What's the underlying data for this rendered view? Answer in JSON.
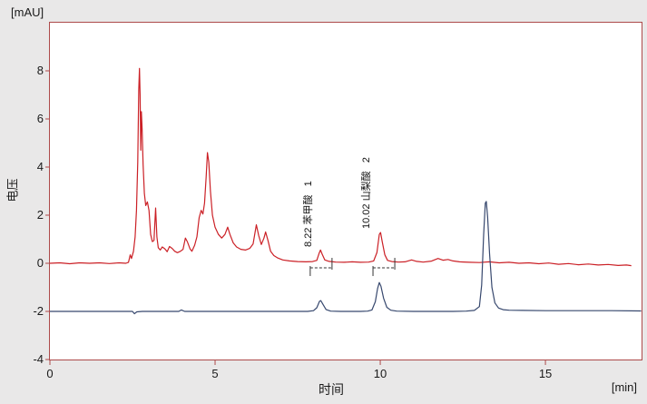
{
  "chart_data": {
    "type": "line",
    "title": "",
    "y_unit": "[mAU]",
    "x_unit": "[min]",
    "ylabel": "电压",
    "xlabel": "时间",
    "xlim": [
      0,
      17.91
    ],
    "ylim": [
      -4,
      10
    ],
    "x_ticks": [
      0,
      5,
      10,
      15
    ],
    "y_ticks": [
      8,
      6,
      4,
      2,
      0,
      -2,
      -4
    ],
    "frame_color": "#ad4a4a",
    "plot_bg": "#ffffff",
    "background": "#e9e8e8",
    "integration_mark_color": "#333333",
    "series": [
      {
        "name": "red-signal-trace",
        "color": "#cb2026",
        "points": [
          [
            0,
            0
          ],
          [
            0.3,
            0.02
          ],
          [
            0.6,
            -0.02
          ],
          [
            0.9,
            0.02
          ],
          [
            1.2,
            0
          ],
          [
            1.5,
            0.02
          ],
          [
            1.8,
            -0.01
          ],
          [
            2.1,
            0.02
          ],
          [
            2.3,
            0
          ],
          [
            2.38,
            0.04
          ],
          [
            2.43,
            0.35
          ],
          [
            2.47,
            0.2
          ],
          [
            2.53,
            0.5
          ],
          [
            2.58,
            1.1
          ],
          [
            2.62,
            2.2
          ],
          [
            2.66,
            4.2
          ],
          [
            2.69,
            7.2
          ],
          [
            2.71,
            8.1
          ],
          [
            2.73,
            7.0
          ],
          [
            2.75,
            4.7
          ],
          [
            2.77,
            6.3
          ],
          [
            2.79,
            5.6
          ],
          [
            2.82,
            4.1
          ],
          [
            2.86,
            2.9
          ],
          [
            2.9,
            2.4
          ],
          [
            2.95,
            2.55
          ],
          [
            3,
            2.2
          ],
          [
            3.05,
            1.2
          ],
          [
            3.1,
            0.9
          ],
          [
            3.15,
            0.95
          ],
          [
            3.2,
            2.3
          ],
          [
            3.24,
            1.1
          ],
          [
            3.28,
            0.65
          ],
          [
            3.34,
            0.55
          ],
          [
            3.4,
            0.68
          ],
          [
            3.48,
            0.6
          ],
          [
            3.55,
            0.48
          ],
          [
            3.62,
            0.7
          ],
          [
            3.7,
            0.62
          ],
          [
            3.78,
            0.5
          ],
          [
            3.86,
            0.44
          ],
          [
            3.95,
            0.5
          ],
          [
            4.03,
            0.58
          ],
          [
            4.1,
            1.05
          ],
          [
            4.16,
            0.9
          ],
          [
            4.24,
            0.6
          ],
          [
            4.3,
            0.5
          ],
          [
            4.38,
            0.75
          ],
          [
            4.45,
            1.1
          ],
          [
            4.52,
            1.9
          ],
          [
            4.58,
            2.2
          ],
          [
            4.63,
            2.05
          ],
          [
            4.68,
            2.5
          ],
          [
            4.73,
            3.6
          ],
          [
            4.77,
            4.6
          ],
          [
            4.81,
            4.2
          ],
          [
            4.86,
            3.0
          ],
          [
            4.92,
            2.0
          ],
          [
            5,
            1.5
          ],
          [
            5.1,
            1.2
          ],
          [
            5.2,
            1.05
          ],
          [
            5.3,
            1.2
          ],
          [
            5.38,
            1.5
          ],
          [
            5.45,
            1.2
          ],
          [
            5.55,
            0.85
          ],
          [
            5.65,
            0.68
          ],
          [
            5.78,
            0.58
          ],
          [
            5.92,
            0.55
          ],
          [
            6.05,
            0.62
          ],
          [
            6.15,
            0.8
          ],
          [
            6.25,
            1.6
          ],
          [
            6.32,
            1.15
          ],
          [
            6.4,
            0.78
          ],
          [
            6.48,
            1.05
          ],
          [
            6.53,
            1.3
          ],
          [
            6.6,
            0.95
          ],
          [
            6.68,
            0.5
          ],
          [
            6.78,
            0.32
          ],
          [
            6.9,
            0.22
          ],
          [
            7.05,
            0.14
          ],
          [
            7.25,
            0.1
          ],
          [
            7.5,
            0.07
          ],
          [
            7.75,
            0.06
          ],
          [
            7.95,
            0.07
          ],
          [
            8.08,
            0.12
          ],
          [
            8.15,
            0.42
          ],
          [
            8.19,
            0.55
          ],
          [
            8.24,
            0.38
          ],
          [
            8.32,
            0.14
          ],
          [
            8.45,
            0.08
          ],
          [
            8.65,
            0.05
          ],
          [
            8.9,
            0.04
          ],
          [
            9.15,
            0.06
          ],
          [
            9.4,
            0.04
          ],
          [
            9.65,
            0.05
          ],
          [
            9.8,
            0.1
          ],
          [
            9.9,
            0.45
          ],
          [
            9.97,
            1.2
          ],
          [
            10.01,
            1.28
          ],
          [
            10.06,
            0.9
          ],
          [
            10.14,
            0.35
          ],
          [
            10.22,
            0.12
          ],
          [
            10.35,
            0.07
          ],
          [
            10.55,
            0.05
          ],
          [
            10.75,
            0.06
          ],
          [
            10.95,
            0.14
          ],
          [
            11.1,
            0.08
          ],
          [
            11.3,
            0.05
          ],
          [
            11.55,
            0.09
          ],
          [
            11.75,
            0.2
          ],
          [
            11.9,
            0.13
          ],
          [
            12.05,
            0.16
          ],
          [
            12.2,
            0.1
          ],
          [
            12.4,
            0.06
          ],
          [
            12.7,
            0.04
          ],
          [
            13,
            0.03
          ],
          [
            13.3,
            0.06
          ],
          [
            13.6,
            0.02
          ],
          [
            13.9,
            0.04
          ],
          [
            14.2,
            0
          ],
          [
            14.5,
            0.02
          ],
          [
            14.8,
            -0.02
          ],
          [
            15.1,
            0.01
          ],
          [
            15.4,
            -0.04
          ],
          [
            15.7,
            -0.01
          ],
          [
            16,
            -0.06
          ],
          [
            16.3,
            -0.03
          ],
          [
            16.6,
            -0.07
          ],
          [
            16.9,
            -0.05
          ],
          [
            17.2,
            -0.09
          ],
          [
            17.45,
            -0.07
          ],
          [
            17.6,
            -0.1
          ]
        ]
      },
      {
        "name": "blue-signal-trace",
        "color": "#37486e",
        "points": [
          [
            0,
            -2
          ],
          [
            1,
            -2
          ],
          [
            2,
            -2
          ],
          [
            2.5,
            -2
          ],
          [
            2.56,
            -2.1
          ],
          [
            2.63,
            -2.02
          ],
          [
            2.8,
            -2
          ],
          [
            3.9,
            -2
          ],
          [
            3.98,
            -1.94
          ],
          [
            4.08,
            -2
          ],
          [
            5,
            -2
          ],
          [
            6,
            -2
          ],
          [
            7,
            -2
          ],
          [
            7.8,
            -2
          ],
          [
            7.98,
            -1.97
          ],
          [
            8.08,
            -1.85
          ],
          [
            8.16,
            -1.58
          ],
          [
            8.2,
            -1.55
          ],
          [
            8.27,
            -1.72
          ],
          [
            8.36,
            -1.92
          ],
          [
            8.5,
            -1.99
          ],
          [
            8.8,
            -2
          ],
          [
            9.4,
            -2
          ],
          [
            9.62,
            -1.99
          ],
          [
            9.75,
            -1.94
          ],
          [
            9.85,
            -1.6
          ],
          [
            9.92,
            -1.05
          ],
          [
            9.97,
            -0.8
          ],
          [
            10.02,
            -0.95
          ],
          [
            10.1,
            -1.45
          ],
          [
            10.2,
            -1.83
          ],
          [
            10.32,
            -1.95
          ],
          [
            10.5,
            -1.99
          ],
          [
            11,
            -2
          ],
          [
            11.5,
            -2
          ],
          [
            12.2,
            -2
          ],
          [
            12.6,
            -1.99
          ],
          [
            12.85,
            -1.96
          ],
          [
            13,
            -1.8
          ],
          [
            13.07,
            -0.9
          ],
          [
            13.13,
            1.2
          ],
          [
            13.18,
            2.5
          ],
          [
            13.21,
            2.57
          ],
          [
            13.25,
            1.9
          ],
          [
            13.31,
            0.4
          ],
          [
            13.38,
            -1
          ],
          [
            13.47,
            -1.65
          ],
          [
            13.58,
            -1.86
          ],
          [
            13.72,
            -1.93
          ],
          [
            13.9,
            -1.95
          ],
          [
            14.3,
            -1.96
          ],
          [
            15,
            -1.97
          ],
          [
            16,
            -1.97
          ],
          [
            17,
            -1.97
          ],
          [
            17.9,
            -1.98
          ]
        ]
      }
    ],
    "peak_annotations": [
      {
        "text": "8.22 苯甲酸   1",
        "x": 8.19,
        "y": 0.68
      },
      {
        "text": "10.02 山梨酸   2",
        "x": 9.97,
        "y": 1.43
      }
    ],
    "integration_marks": [
      {
        "x1": 7.88,
        "x2": 8.54,
        "y": -0.19
      },
      {
        "x1": 9.78,
        "x2": 10.44,
        "y": -0.19
      }
    ]
  }
}
